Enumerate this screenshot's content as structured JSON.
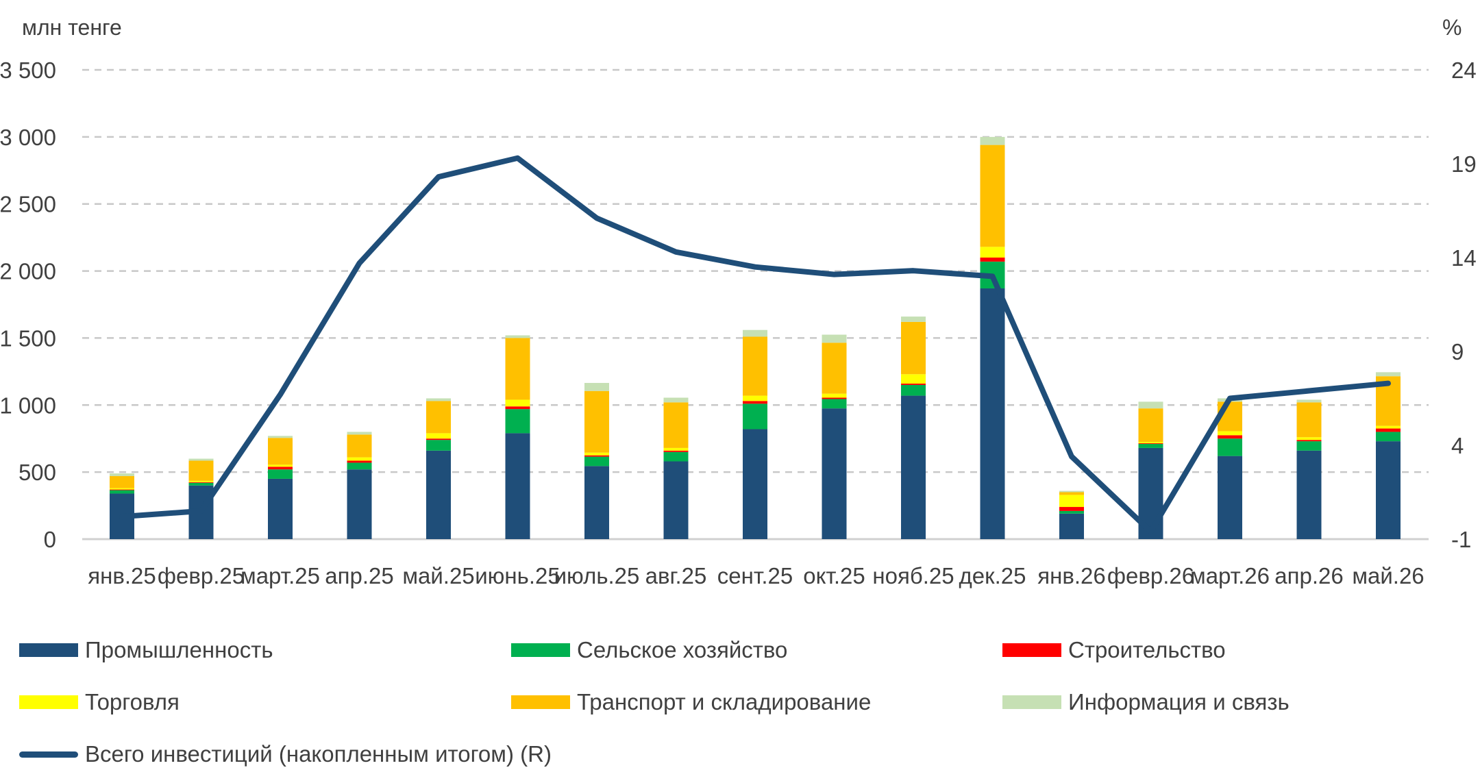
{
  "chart_data": {
    "type": "bar",
    "stacked": true,
    "left_unit": "млн тенге",
    "right_unit": "%",
    "categories": [
      "янв.25",
      "февр.25",
      "март.25",
      "апр.25",
      "май.25",
      "июнь.25",
      "июль.25",
      "авг.25",
      "сент.25",
      "окт.25",
      "нояб.25",
      "дек.25",
      "янв.26",
      "февр.26",
      "март.26",
      "апр.26",
      "май.26"
    ],
    "ylim": [
      0,
      3500
    ],
    "y_ticks": [
      0,
      500,
      1000,
      1500,
      2000,
      2500,
      3000,
      3500
    ],
    "y_tick_labels": [
      "0",
      "500",
      "1 000",
      "1 500",
      "2 000",
      "2 500",
      "3 000",
      "3 500"
    ],
    "y2lim": [
      -1,
      24
    ],
    "y2_ticks": [
      -1,
      4,
      9,
      14,
      19,
      24
    ],
    "y2_tick_labels": [
      "-1",
      "4",
      "9",
      "14",
      "19",
      "24"
    ],
    "grid": true,
    "series": [
      {
        "name": "Промышленность",
        "color": "#1f4e79",
        "values": [
          340,
          400,
          450,
          520,
          660,
          790,
          545,
          580,
          820,
          975,
          1070,
          1870,
          190,
          680,
          620,
          660,
          730
        ]
      },
      {
        "name": "Сельское хозяйство",
        "color": "#00b050",
        "values": [
          25,
          20,
          70,
          50,
          80,
          180,
          70,
          70,
          190,
          70,
          80,
          200,
          20,
          30,
          130,
          70,
          70
        ]
      },
      {
        "name": "Строительство",
        "color": "#ff0000",
        "values": [
          5,
          5,
          20,
          15,
          10,
          20,
          10,
          10,
          20,
          10,
          10,
          30,
          30,
          5,
          25,
          10,
          25
        ]
      },
      {
        "name": "Торговля",
        "color": "#ffff00",
        "values": [
          10,
          10,
          15,
          25,
          40,
          50,
          20,
          20,
          40,
          30,
          70,
          80,
          90,
          10,
          30,
          20,
          20
        ]
      },
      {
        "name": "Транспорт и складирование",
        "color": "#ffc000",
        "values": [
          90,
          150,
          200,
          170,
          240,
          460,
          460,
          340,
          440,
          380,
          390,
          760,
          20,
          250,
          220,
          260,
          370
        ]
      },
      {
        "name": "Информация и связь",
        "color": "#c6e0b4",
        "values": [
          20,
          15,
          15,
          20,
          20,
          20,
          60,
          35,
          50,
          60,
          40,
          60,
          10,
          50,
          25,
          20,
          30
        ]
      }
    ],
    "line_series": {
      "name": "Всего инвестиций (накопленным итогом) (R)",
      "color": "#1f4e79",
      "axis": "right",
      "values": [
        0.2,
        0.5,
        6.7,
        13.7,
        18.3,
        19.3,
        16.1,
        14.3,
        13.5,
        13.1,
        13.3,
        13.0,
        3.4,
        -0.6,
        6.5,
        6.9,
        7.3
      ]
    }
  }
}
